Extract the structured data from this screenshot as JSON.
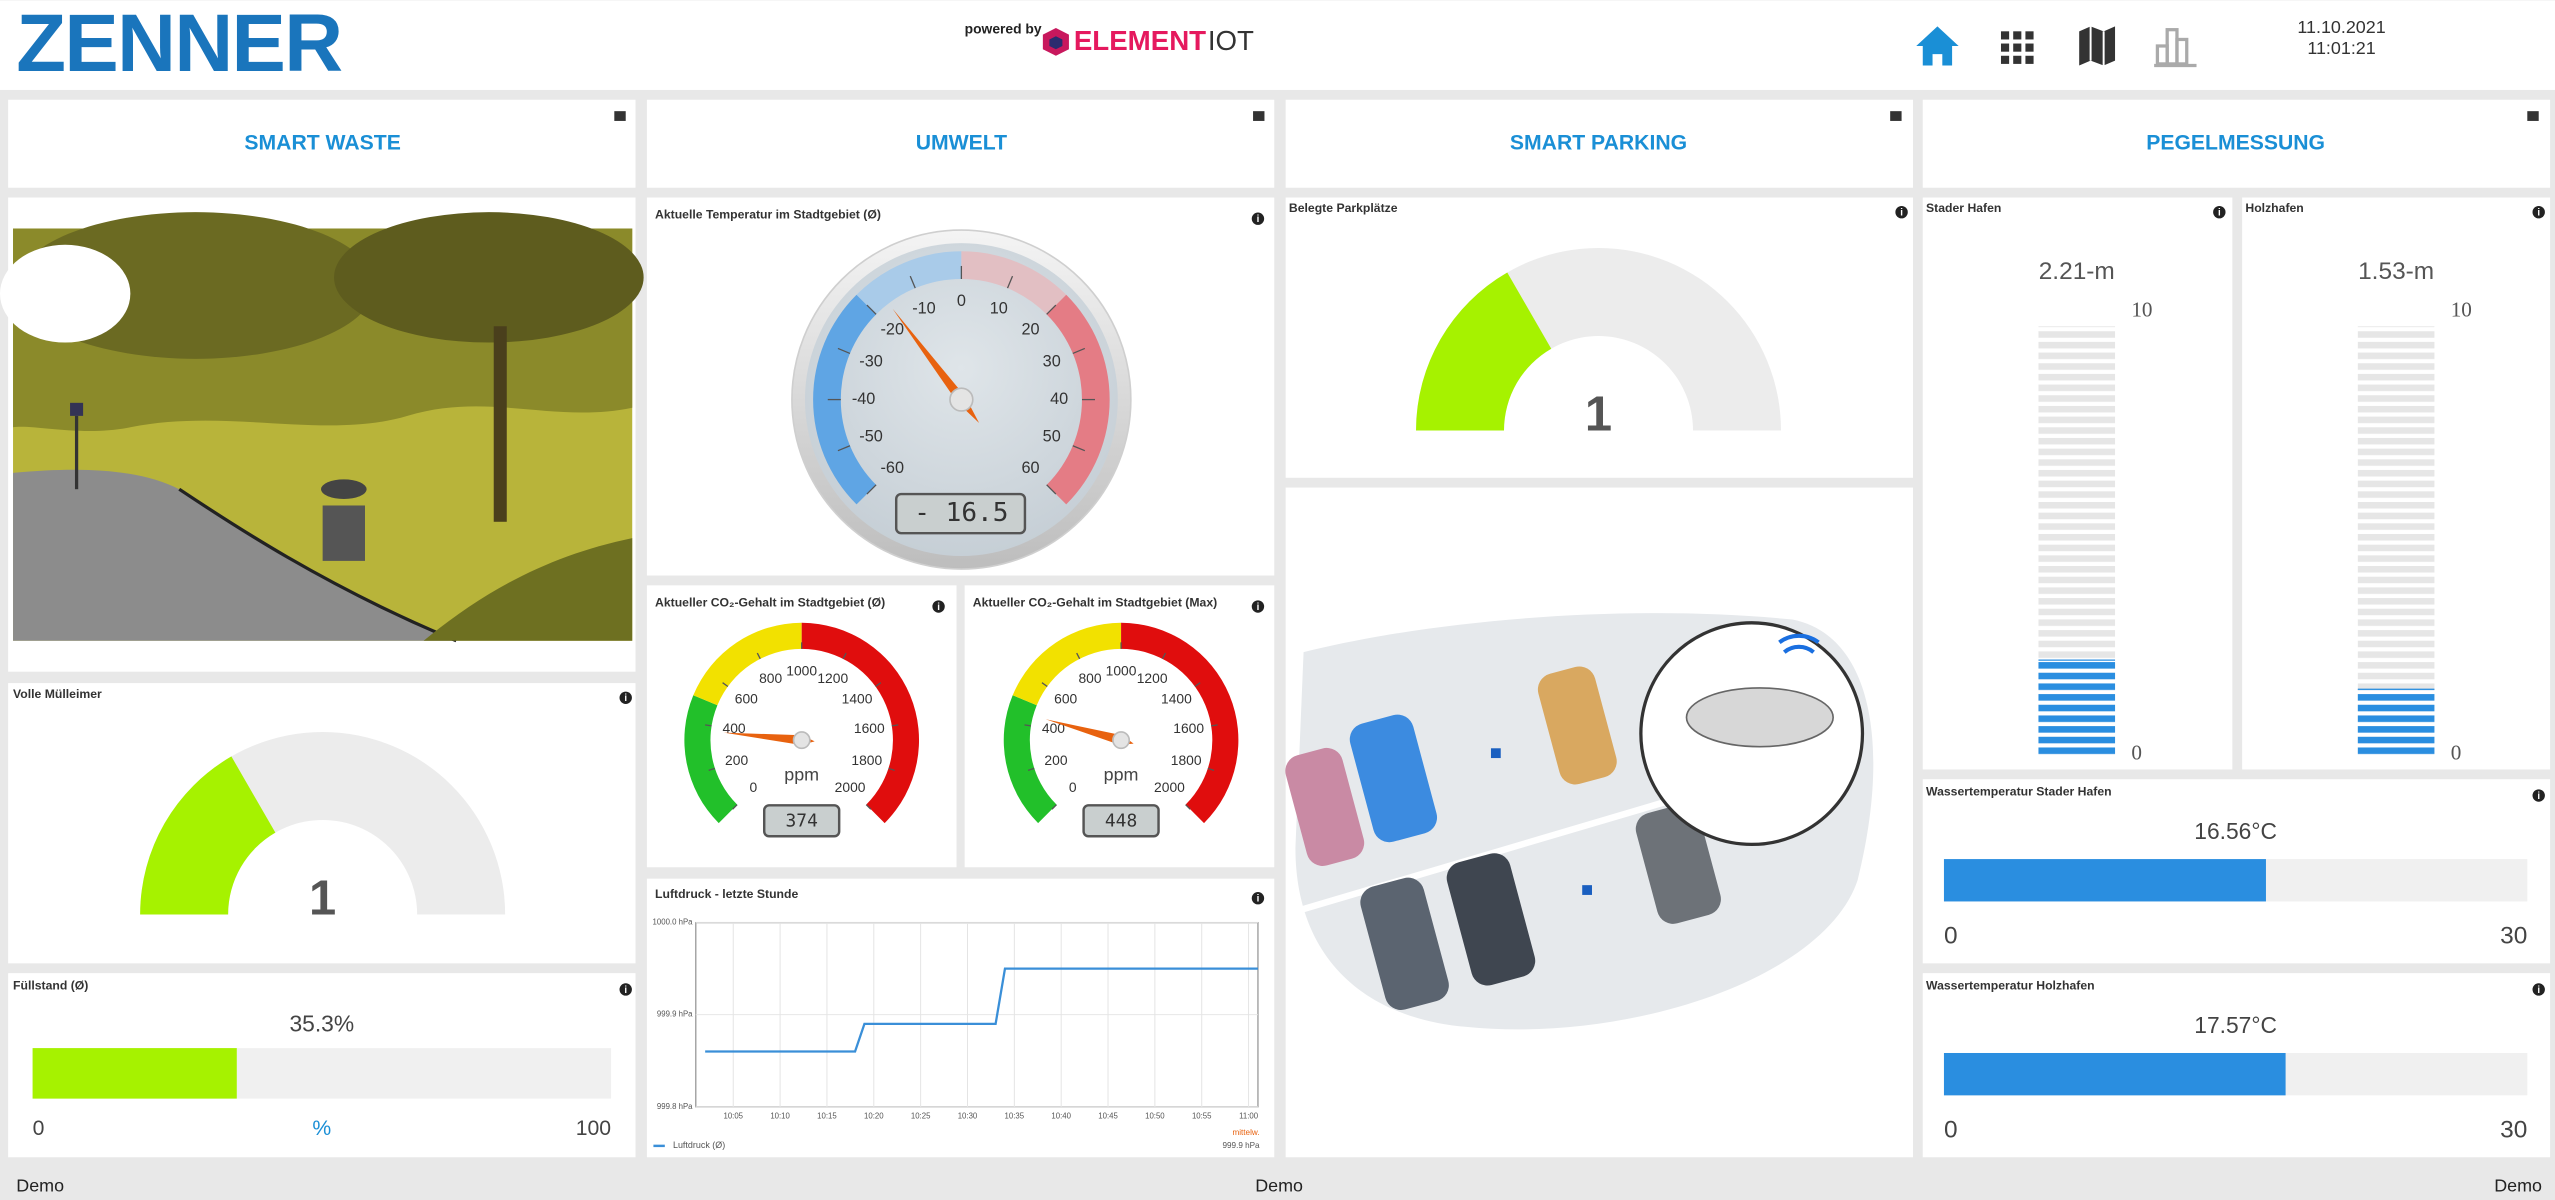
{
  "header": {
    "logo": "ZENNER",
    "powered_by": "powered by",
    "brand": [
      "ELEMENT",
      "IOT"
    ],
    "date": "11.10.2021",
    "time": "11:01:21"
  },
  "tabs": [
    "SMART WASTE",
    "UMWELT",
    "SMART PARKING",
    "PEGELMESSUNG"
  ],
  "waste_bins": {
    "type": "half-gauge",
    "title": "Volle Mülleimer",
    "value": 1,
    "range": [
      0,
      3
    ],
    "color": "#a6f200"
  },
  "fill_level": {
    "type": "hbar",
    "title": "Füllstand (Ø)",
    "value": 35.3,
    "value_label": "35.3%",
    "unit": "%",
    "xlim": [
      0,
      100
    ],
    "xticks": [
      0,
      100
    ],
    "color": "#a6f200"
  },
  "temperature": {
    "type": "dial",
    "title": "Aktuelle Temperatur im Stadtgebiet (Ø)",
    "value": -16.5,
    "value_label": "- 16.5",
    "ylim": [
      -60,
      60
    ],
    "yticks": [
      -60,
      -50,
      -40,
      -30,
      -20,
      -10,
      0,
      10,
      20,
      30,
      40,
      50,
      60
    ],
    "bands": [
      {
        "from": -60,
        "to": -20,
        "color": "#5fa5e4"
      },
      {
        "from": -20,
        "to": 0,
        "color": "#a9cbe9"
      },
      {
        "from": 0,
        "to": 20,
        "color": "#e2bfc3"
      },
      {
        "from": 20,
        "to": 60,
        "color": "#e47c85"
      }
    ],
    "needle_color": "#e8620f"
  },
  "co2_avg": {
    "type": "dial",
    "title": "Aktueller CO₂-Gehalt im Stadtgebiet (Ø)",
    "unit": "ppm",
    "value": 374,
    "ylim": [
      0,
      2000
    ],
    "yticks": [
      0,
      200,
      400,
      600,
      800,
      1000,
      1200,
      1400,
      1600,
      1800,
      2000
    ],
    "bands": [
      {
        "from": 0,
        "to": 500,
        "color": "#22c02a"
      },
      {
        "from": 500,
        "to": 1000,
        "color": "#f2e100"
      },
      {
        "from": 1000,
        "to": 2000,
        "color": "#e00d0d"
      }
    ],
    "needle_color": "#e8620f"
  },
  "co2_max": {
    "type": "dial",
    "title": "Aktueller CO₂-Gehalt im Stadtgebiet (Max)",
    "unit": "ppm",
    "value": 448,
    "ylim": [
      0,
      2000
    ],
    "yticks": [
      0,
      200,
      400,
      600,
      800,
      1000,
      1200,
      1400,
      1600,
      1800,
      2000
    ],
    "bands": [
      {
        "from": 0,
        "to": 500,
        "color": "#22c02a"
      },
      {
        "from": 500,
        "to": 1000,
        "color": "#f2e100"
      },
      {
        "from": 1000,
        "to": 2000,
        "color": "#e00d0d"
      }
    ],
    "needle_color": "#e8620f"
  },
  "pressure": {
    "type": "line",
    "title": "Luftdruck - letzte Stunde",
    "x": [
      "10:02",
      "10:18",
      "10:19",
      "10:33",
      "10:34",
      "11:01"
    ],
    "series": [
      {
        "name": "Luftdruck (Ø)",
        "color": "#3a8fd8",
        "values": [
          999.86,
          999.86,
          999.89,
          999.89,
          999.95,
          999.95
        ]
      }
    ],
    "xlim": [
      "10:01",
      "11:01"
    ],
    "xticks": [
      "10:05",
      "10:10",
      "10:15",
      "10:20",
      "10:25",
      "10:30",
      "10:35",
      "10:40",
      "10:45",
      "10:50",
      "10:55",
      "11:00"
    ],
    "ylim": [
      999.8,
      1000.0
    ],
    "yticks": [
      {
        "value": 999.8,
        "label": "999.8 hPa"
      },
      {
        "value": 999.9,
        "label": "999.9 hPa"
      },
      {
        "value": 1000.0,
        "label": "1000.0 hPa"
      }
    ],
    "grid": true,
    "annotation": {
      "label": "mittelw.",
      "value": "999.9 hPa"
    }
  },
  "parking": {
    "type": "half-gauge",
    "title": "Belegte Parkplätze",
    "value": 1,
    "range": [
      0,
      3
    ],
    "color": "#a6f200"
  },
  "levels": [
    {
      "type": "tank",
      "title": "Stader Hafen",
      "value": 2.21,
      "value_label": "2.21-m",
      "ylim": [
        0,
        10
      ],
      "yticks": [
        0,
        10
      ],
      "color": "#2a8ee0"
    },
    {
      "type": "tank",
      "title": "Holzhafen",
      "value": 1.53,
      "value_label": "1.53-m",
      "ylim": [
        0,
        10
      ],
      "yticks": [
        0,
        10
      ],
      "color": "#2a8ee0"
    }
  ],
  "water_temps": [
    {
      "type": "hbar",
      "title": "Wassertemperatur Stader Hafen",
      "value": 16.56,
      "value_label": "16.56°C",
      "xlim": [
        0,
        30
      ],
      "xticks": [
        0,
        30
      ],
      "color": "#2a8ee0"
    },
    {
      "type": "hbar",
      "title": "Wassertemperatur Holzhafen",
      "value": 17.57,
      "value_label": "17.57°C",
      "xlim": [
        0,
        30
      ],
      "xticks": [
        0,
        30
      ],
      "color": "#2a8ee0"
    }
  ],
  "footer": [
    "Demo",
    "Demo",
    "Demo"
  ]
}
